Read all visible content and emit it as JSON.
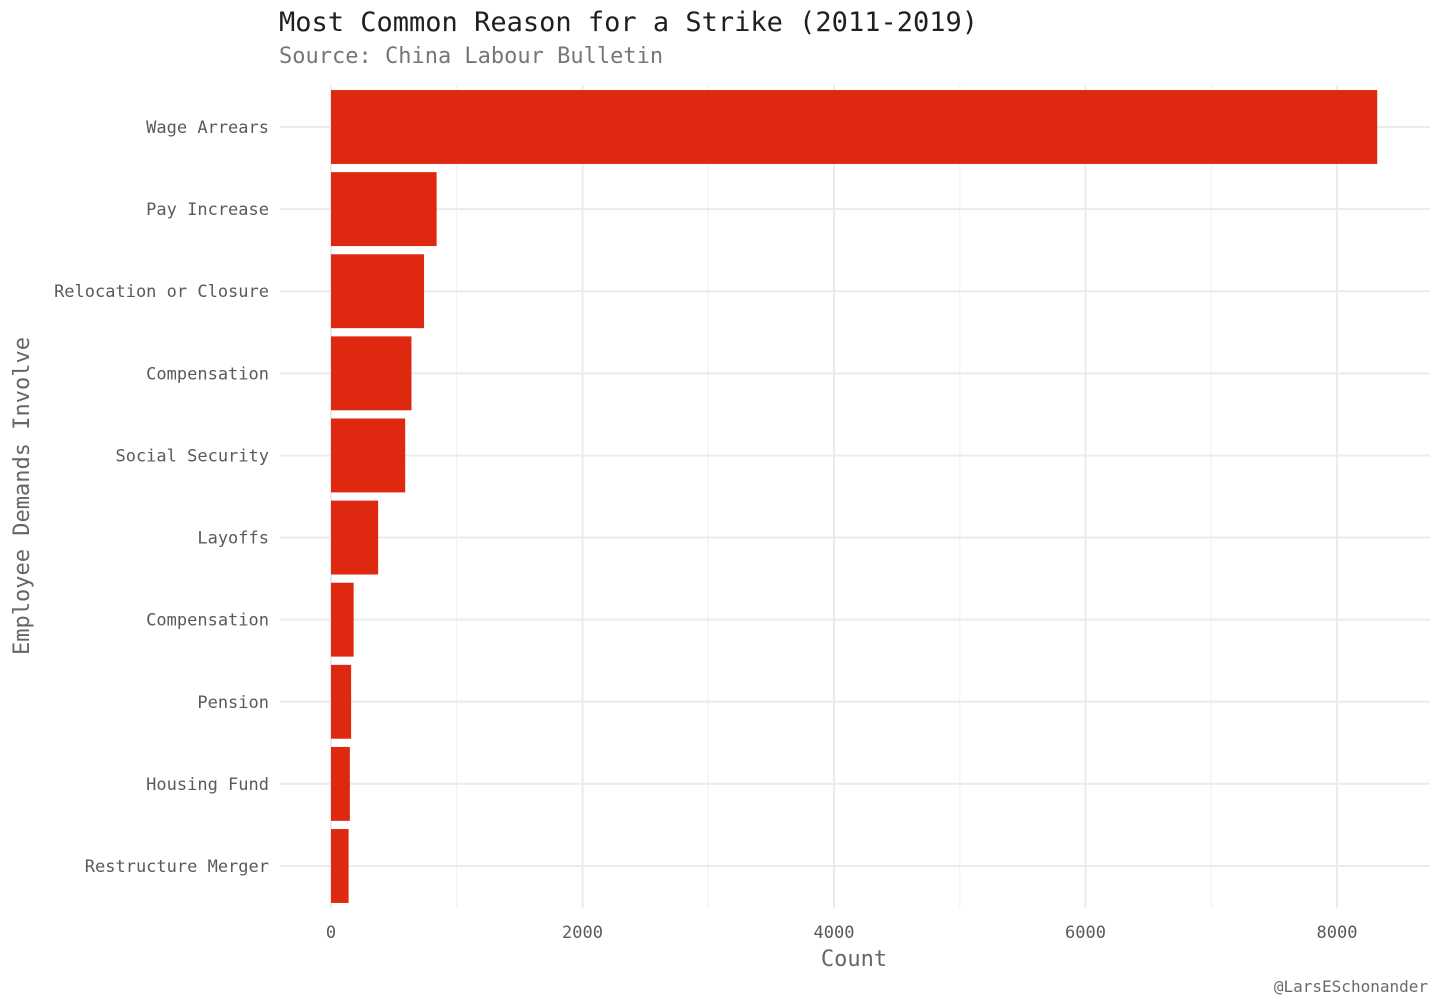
{
  "chart_data": {
    "type": "bar",
    "orientation": "horizontal",
    "title": "Most Common Reason for a Strike (2011-2019)",
    "subtitle": "Source: China Labour Bulletin",
    "xlabel": "Count",
    "ylabel": "Employee Demands Involve",
    "caption": "@LarsESchonander",
    "categories": [
      "Wage Arrears",
      "Pay Increase",
      "Relocation or Closure",
      "Compensation",
      "Social Security",
      "Layoffs",
      "Compensation",
      "Pension",
      "Housing Fund",
      "Restructure Merger"
    ],
    "values": [
      8320,
      840,
      740,
      640,
      590,
      375,
      180,
      160,
      150,
      140
    ],
    "xlim": [
      0,
      8400
    ],
    "xticks": [
      0,
      2000,
      4000,
      6000,
      8000
    ],
    "bar_color": "#de2910",
    "grid": true,
    "legend": "none"
  }
}
